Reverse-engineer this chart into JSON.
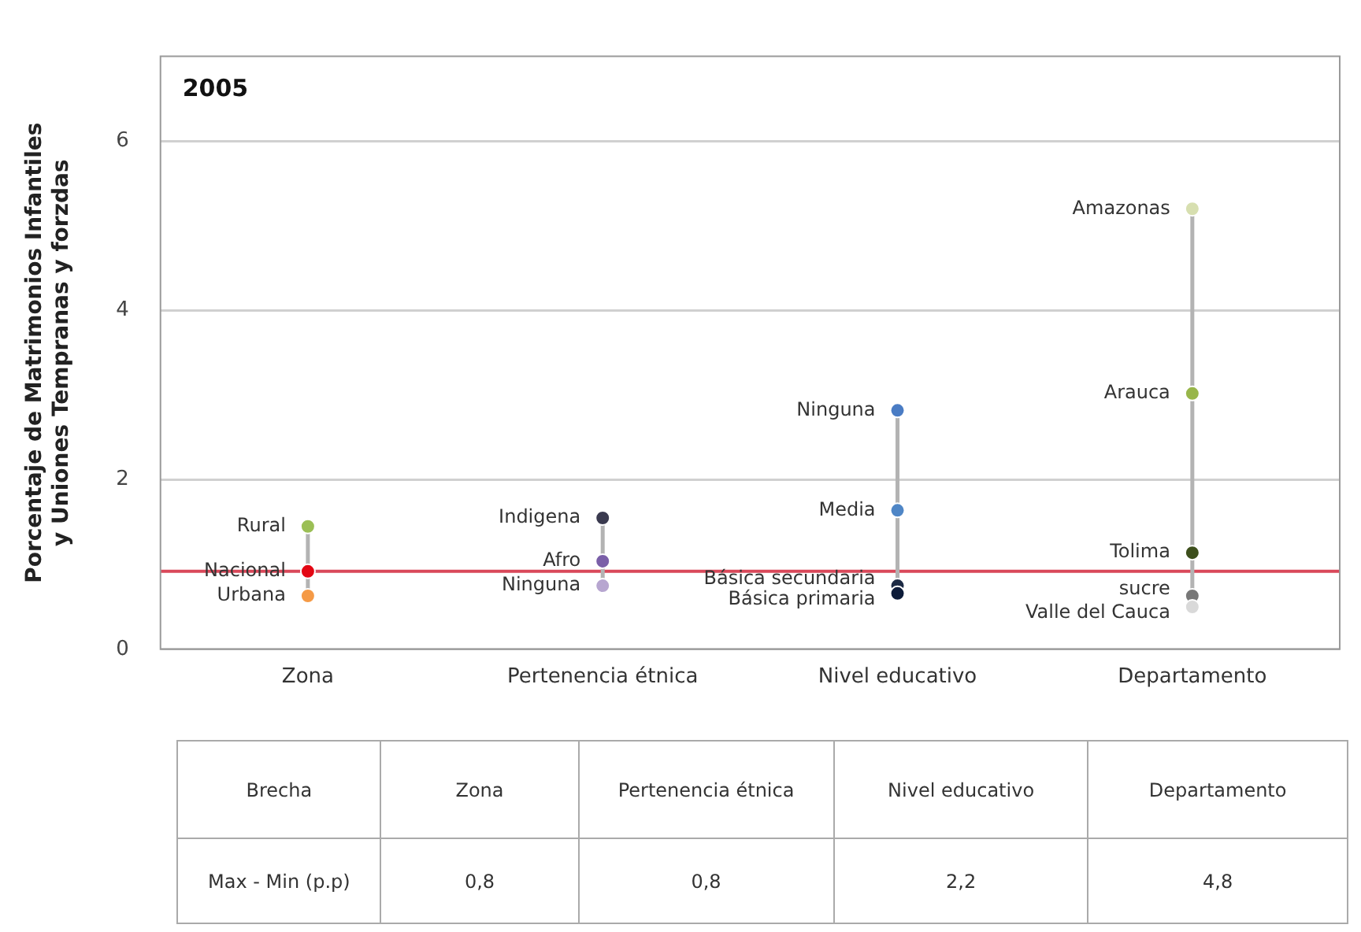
{
  "chart_data": {
    "type": "line",
    "title": "2005",
    "ylabel": "Porcentaje de Matrimonios Infantiles y Uniones Tempranas y forzdas",
    "categories": [
      "Zona",
      "Pertenencia étnica",
      "Nivel educativo",
      "Departamento"
    ],
    "series": [
      {
        "x": [
          "Zona",
          "Zona",
          "Zona"
        ],
        "values": [
          1.45,
          0.92,
          0.63
        ],
        "color": "#b3b3b3",
        "colors": [
          "#9bbf55",
          "#e30613",
          "#f59a46"
        ]
      },
      {
        "x": [
          "Pertenencia étnica",
          "Pertenencia étnica",
          "Pertenencia étnica"
        ],
        "values": [
          1.55,
          1.04,
          0.75
        ],
        "color": "#b3b3b3",
        "colors": [
          "#3a3a4f",
          "#7a5fa8",
          "#b7a6d0"
        ]
      },
      {
        "x": [
          "Nivel educativo",
          "Nivel educativo",
          "Nivel educativo",
          "Nivel educativo"
        ],
        "values": [
          2.82,
          1.64,
          0.75,
          0.66
        ],
        "color": "#b3b3b3",
        "colors": [
          "#4a7cc4",
          "#4f86c6",
          "#1c2a44",
          "#0e1c3a"
        ]
      },
      {
        "x": [
          "Departamento",
          "Departamento",
          "Departamento",
          "Departamento",
          "Departamento"
        ],
        "values": [
          5.2,
          3.02,
          1.14,
          0.63,
          0.5
        ],
        "color": "#b3b3b3",
        "colors": [
          "#d7dfb0",
          "#98b64a",
          "#3d4f1c",
          "#777777",
          "#d9d9d9"
        ]
      }
    ],
    "ylim": [
      0,
      7
    ],
    "yticks": [
      0,
      2,
      4,
      6
    ],
    "grid": "y",
    "marker": "circle",
    "ref_lines": [
      {
        "axis": "y",
        "value": 0.92,
        "color": "#d9485a"
      }
    ],
    "annotations": [
      {
        "text": "Rural",
        "x": "Zona",
        "y": 1.45
      },
      {
        "text": "Nacional",
        "x": "Zona",
        "y": 0.92
      },
      {
        "text": "Urbana",
        "x": "Zona",
        "y": 0.63
      },
      {
        "text": "Indigena",
        "x": "Pertenencia étnica",
        "y": 1.55
      },
      {
        "text": "Afro",
        "x": "Pertenencia étnica",
        "y": 1.04
      },
      {
        "text": "Ninguna",
        "x": "Pertenencia étnica",
        "y": 0.75
      },
      {
        "text": "Ninguna",
        "x": "Nivel educativo",
        "y": 2.82
      },
      {
        "text": "Media",
        "x": "Nivel educativo",
        "y": 1.64
      },
      {
        "text": "Básica secundaria",
        "x": "Nivel educativo",
        "y": 0.75
      },
      {
        "text": "Básica primaria",
        "x": "Nivel educativo",
        "y": 0.66
      },
      {
        "text": "Amazonas",
        "x": "Departamento",
        "y": 5.2
      },
      {
        "text": "Arauca",
        "x": "Departamento",
        "y": 3.02
      },
      {
        "text": "Tolima",
        "x": "Departamento",
        "y": 1.14
      },
      {
        "text": "sucre",
        "x": "Departamento",
        "y": 0.63
      },
      {
        "text": "Valle del Cauca",
        "x": "Departamento",
        "y": 0.5
      },
      "Brecha",
      "Zona",
      "Pertenencia étnica",
      "Nivel educativo",
      "Departamento",
      "Max - Min (p.p)",
      "0,8",
      "0,8",
      "2,2",
      "4,8"
    ]
  }
}
